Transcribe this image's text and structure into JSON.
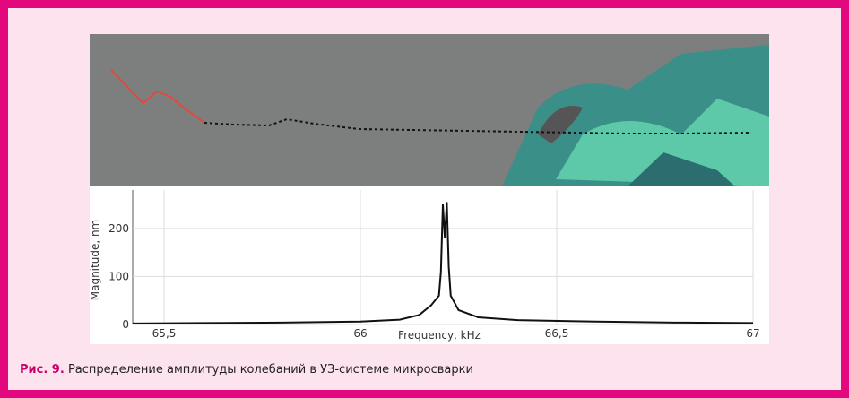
{
  "chart_data": {
    "type": "line",
    "x_label": "Frequency, kHz",
    "y_label": "Magnitude, nm",
    "x": [
      65.42,
      65.6,
      65.8,
      66.0,
      66.1,
      66.15,
      66.18,
      66.2,
      66.205,
      66.21,
      66.215,
      66.22,
      66.225,
      66.23,
      66.25,
      66.3,
      66.4,
      66.6,
      66.8,
      67.0
    ],
    "series": [
      {
        "color": "#111111",
        "values": [
          2,
          3,
          4,
          6,
          10,
          20,
          40,
          60,
          110,
          250,
          180,
          255,
          120,
          60,
          30,
          15,
          9,
          6,
          4,
          3
        ]
      }
    ],
    "xlim": [
      65.42,
      67.0
    ],
    "ylim": [
      0,
      280
    ],
    "xticks": [
      {
        "value": 65.5,
        "label": "65,5"
      },
      66,
      {
        "value": 66.5,
        "label": "66,5"
      },
      67
    ],
    "yticks": [
      0,
      100,
      200
    ],
    "grid": true
  },
  "caption": {
    "label": "Рис. 9.",
    "text": "Распределение амплитуды колебаний в УЗ-системе микросварки"
  }
}
